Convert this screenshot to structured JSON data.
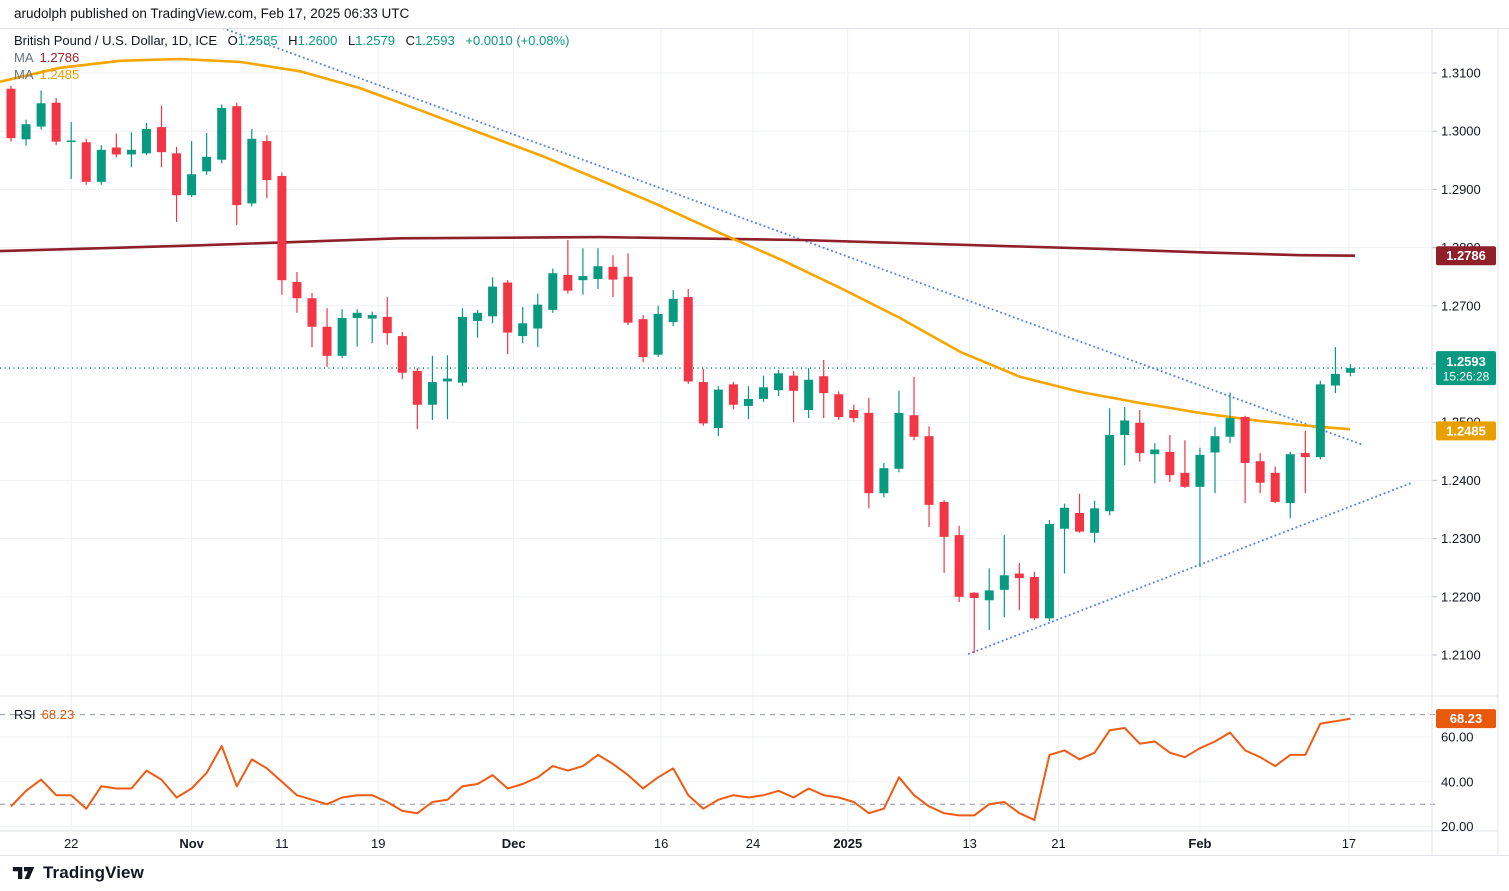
{
  "header": {
    "published_line": "arudolph published on TradingView.com, Feb 17, 2025 06:33 UTC"
  },
  "legend": {
    "symbol_line": "British Pound / U.S. Dollar, 1D, ICE",
    "ohlc": {
      "o_label": "O",
      "o": "1.2585",
      "h_label": "H",
      "h": "1.2600",
      "l_label": "L",
      "l": "1.2579",
      "c_label": "C",
      "c": "1.2593",
      "change": "+0.0010 (+0.08%)"
    },
    "ma1": {
      "label": "MA",
      "value": "1.2786"
    },
    "ma2": {
      "label": "MA",
      "value": "1.2485"
    }
  },
  "rsi_legend": {
    "label": "RSI",
    "value": "68.23"
  },
  "footer": {
    "brand": "TradingView"
  },
  "colors": {
    "up": "#089981",
    "down": "#f23645",
    "ma_fast": "#f7a600",
    "ma_fast_badge": "#e8a000",
    "ma_slow": "#8f1f29",
    "rsi_line": "#ef5b13",
    "rsi_badge": "#e8590c",
    "trendline": "#5e81f2",
    "price_line": "#089981",
    "grid": "#eef1f6",
    "guide_dash": "#8e94a3",
    "axis_text": "#131722",
    "border": "#e0e3eb",
    "badge_text": "#ffffff",
    "tick": "#b9bec9"
  },
  "chart_data": {
    "type": "candlestick",
    "title": "British Pound / U.S. Dollar",
    "interval": "1D",
    "exchange": "ICE",
    "current": {
      "o": 1.2585,
      "h": 1.26,
      "l": 1.2579,
      "c": 1.2593,
      "change": "+0.0010",
      "change_pct": "+0.08%"
    },
    "price_line": 1.2593,
    "countdown": "15:26:28",
    "ma_slow_value": 1.2786,
    "ma_fast_value": 1.2485,
    "rsi_value": 68.23,
    "price_axis_range": [
      1.2029,
      1.3148
    ],
    "rsi_axis_range": [
      18,
      78
    ],
    "price_ticks": [
      {
        "label": "1.3100",
        "value": 1.31
      },
      {
        "label": "1.3000",
        "value": 1.3
      },
      {
        "label": "1.2900",
        "value": 1.29
      },
      {
        "label": "1.2800",
        "value": 1.28
      },
      {
        "label": "1.2700",
        "value": 1.27
      },
      {
        "label": "1.2600",
        "value": 1.26
      },
      {
        "label": "1.2500",
        "value": 1.25
      },
      {
        "label": "1.2400",
        "value": 1.24
      },
      {
        "label": "1.2300",
        "value": 1.23
      },
      {
        "label": "1.2200",
        "value": 1.22
      },
      {
        "label": "1.2100",
        "value": 1.21
      }
    ],
    "rsi_ticks": [
      {
        "label": "60.00",
        "value": 60
      },
      {
        "label": "40.00",
        "value": 40
      },
      {
        "label": "20.00",
        "value": 20
      }
    ],
    "rsi_guides": [
      70,
      30
    ],
    "time_ticks": [
      {
        "label": "22",
        "index": 4,
        "bold": false
      },
      {
        "label": "Nov",
        "index": 12,
        "bold": true
      },
      {
        "label": "11",
        "index": 18,
        "bold": false
      },
      {
        "label": "19",
        "index": 24.4,
        "bold": false
      },
      {
        "label": "Dec",
        "index": 33.4,
        "bold": true
      },
      {
        "label": "16",
        "index": 43.2,
        "bold": false
      },
      {
        "label": "24",
        "index": 49.3,
        "bold": false
      },
      {
        "label": "2025",
        "index": 55.6,
        "bold": true
      },
      {
        "label": "13",
        "index": 63.7,
        "bold": false
      },
      {
        "label": "21",
        "index": 69.6,
        "bold": false
      },
      {
        "label": "Feb",
        "index": 79,
        "bold": true
      },
      {
        "label": "17",
        "index": 88.9,
        "bold": false
      }
    ],
    "candles": [
      [
        1.3073,
        1.3078,
        1.2982,
        1.2988
      ],
      [
        1.2986,
        1.302,
        1.2975,
        1.3012
      ],
      [
        1.3008,
        1.307,
        1.3003,
        1.3048
      ],
      [
        1.3049,
        1.3057,
        1.2976,
        1.2982
      ],
      [
        1.2982,
        1.3016,
        1.2918,
        1.2984
      ],
      [
        1.2981,
        1.2987,
        1.2908,
        1.2913
      ],
      [
        1.2913,
        1.2976,
        1.2908,
        1.2968
      ],
      [
        1.2972,
        1.2996,
        1.2955,
        1.296
      ],
      [
        1.296,
        1.2998,
        1.2938,
        1.2968
      ],
      [
        1.2962,
        1.3014,
        1.2959,
        1.3004
      ],
      [
        1.3007,
        1.3044,
        1.2938,
        1.2964
      ],
      [
        1.2962,
        1.2973,
        1.2844,
        1.289
      ],
      [
        1.289,
        1.2983,
        1.2887,
        1.2926
      ],
      [
        1.2931,
        1.2997,
        1.2925,
        1.2956
      ],
      [
        1.2951,
        1.3046,
        1.2945,
        1.304
      ],
      [
        1.3043,
        1.3049,
        1.2839,
        1.2873
      ],
      [
        1.2876,
        1.3004,
        1.2871,
        1.2987
      ],
      [
        1.2983,
        1.2993,
        1.2885,
        1.2916
      ],
      [
        1.2923,
        1.2929,
        1.2719,
        1.2744
      ],
      [
        1.2741,
        1.2758,
        1.2688,
        1.2713
      ],
      [
        1.2713,
        1.2722,
        1.2629,
        1.2664
      ],
      [
        1.2664,
        1.2696,
        1.2595,
        1.2614
      ],
      [
        1.2614,
        1.2694,
        1.261,
        1.2679
      ],
      [
        1.2679,
        1.2694,
        1.263,
        1.2688
      ],
      [
        1.2678,
        1.269,
        1.2636,
        1.2684
      ],
      [
        1.2681,
        1.2715,
        1.2633,
        1.2653
      ],
      [
        1.2648,
        1.2655,
        1.2574,
        1.2585
      ],
      [
        1.2588,
        1.2593,
        1.2488,
        1.253
      ],
      [
        1.253,
        1.2614,
        1.2504,
        1.2569
      ],
      [
        1.257,
        1.2615,
        1.2505,
        1.2575
      ],
      [
        1.2568,
        1.2696,
        1.2562,
        1.2681
      ],
      [
        1.2674,
        1.2693,
        1.2645,
        1.2688
      ],
      [
        1.2682,
        1.2749,
        1.267,
        1.2733
      ],
      [
        1.274,
        1.2744,
        1.2617,
        1.2654
      ],
      [
        1.2648,
        1.2698,
        1.2636,
        1.267
      ],
      [
        1.2661,
        1.2721,
        1.2629,
        1.2702
      ],
      [
        1.2693,
        1.2764,
        1.2688,
        1.2756
      ],
      [
        1.2753,
        1.2813,
        1.2721,
        1.2726
      ],
      [
        1.2744,
        1.2799,
        1.2719,
        1.2751
      ],
      [
        1.2746,
        1.2799,
        1.2729,
        1.2768
      ],
      [
        1.2767,
        1.2787,
        1.2715,
        1.2745
      ],
      [
        1.275,
        1.279,
        1.2667,
        1.2671
      ],
      [
        1.2677,
        1.2684,
        1.2603,
        1.2612
      ],
      [
        1.2616,
        1.27,
        1.2612,
        1.2686
      ],
      [
        1.2672,
        1.2727,
        1.2665,
        1.2712
      ],
      [
        1.2715,
        1.2729,
        1.2566,
        1.257
      ],
      [
        1.2569,
        1.2592,
        1.2494,
        1.2498
      ],
      [
        1.249,
        1.2562,
        1.2476,
        1.2556
      ],
      [
        1.2565,
        1.2569,
        1.2522,
        1.253
      ],
      [
        1.2528,
        1.2562,
        1.2505,
        1.254
      ],
      [
        1.254,
        1.258,
        1.2535,
        1.256
      ],
      [
        1.2555,
        1.259,
        1.2545,
        1.2584
      ],
      [
        1.258,
        1.2588,
        1.25,
        1.2554
      ],
      [
        1.2521,
        1.2593,
        1.2507,
        1.2573
      ],
      [
        1.2579,
        1.2607,
        1.2507,
        1.255
      ],
      [
        1.2548,
        1.2553,
        1.2504,
        1.2509
      ],
      [
        1.2521,
        1.253,
        1.25,
        1.2507
      ],
      [
        1.2516,
        1.2542,
        1.2352,
        1.2378
      ],
      [
        1.2378,
        1.243,
        1.2371,
        1.2421
      ],
      [
        1.242,
        1.2554,
        1.2414,
        1.2516
      ],
      [
        1.2512,
        1.2578,
        1.2469,
        1.2475
      ],
      [
        1.2476,
        1.2493,
        1.232,
        1.2358
      ],
      [
        1.2363,
        1.2366,
        1.2241,
        1.2303
      ],
      [
        1.2306,
        1.2322,
        1.2191,
        1.22
      ],
      [
        1.2207,
        1.2208,
        1.2103,
        1.2198
      ],
      [
        1.2194,
        1.2249,
        1.2143,
        1.2211
      ],
      [
        1.2212,
        1.2306,
        1.2165,
        1.2237
      ],
      [
        1.224,
        1.2258,
        1.2177,
        1.2232
      ],
      [
        1.2234,
        1.2243,
        1.216,
        1.2163
      ],
      [
        1.2163,
        1.2332,
        1.2158,
        1.2325
      ],
      [
        1.2317,
        1.236,
        1.224,
        1.2353
      ],
      [
        1.2344,
        1.2377,
        1.231,
        1.2312
      ],
      [
        1.231,
        1.2365,
        1.2293,
        1.2352
      ],
      [
        1.2347,
        1.2524,
        1.234,
        1.2478
      ],
      [
        1.2478,
        1.2526,
        1.2426,
        1.2503
      ],
      [
        1.2499,
        1.2521,
        1.2432,
        1.2447
      ],
      [
        1.2445,
        1.2464,
        1.2395,
        1.2453
      ],
      [
        1.2449,
        1.2478,
        1.2397,
        1.2409
      ],
      [
        1.2413,
        1.2469,
        1.2387,
        1.2389
      ],
      [
        1.2389,
        1.2456,
        1.2251,
        1.2444
      ],
      [
        1.2448,
        1.2492,
        1.2378,
        1.2476
      ],
      [
        1.2475,
        1.2551,
        1.2464,
        1.2507
      ],
      [
        1.2509,
        1.2511,
        1.2361,
        1.243
      ],
      [
        1.2433,
        1.2447,
        1.2378,
        1.2396
      ],
      [
        1.2413,
        1.2424,
        1.2361,
        1.2363
      ],
      [
        1.2361,
        1.2449,
        1.2335,
        1.2445
      ],
      [
        1.2447,
        1.2485,
        1.2378,
        1.244
      ],
      [
        1.244,
        1.2571,
        1.2436,
        1.2565
      ],
      [
        1.2563,
        1.2629,
        1.255,
        1.2583
      ],
      [
        1.2585,
        1.26,
        1.2579,
        1.2593
      ]
    ],
    "rsi": [
      29,
      36,
      41,
      34,
      34,
      28,
      38,
      37,
      37,
      45,
      41,
      33,
      37,
      44,
      56,
      38,
      50,
      46,
      40,
      34,
      32,
      30,
      33,
      34,
      34,
      31,
      27,
      26,
      31,
      32,
      38,
      39,
      43,
      37,
      39,
      42,
      47,
      45,
      47,
      52,
      48,
      43,
      37,
      42,
      46,
      34,
      28,
      32,
      34,
      33,
      34,
      36,
      33,
      37,
      34,
      33,
      31,
      26,
      28,
      42,
      34,
      29,
      26,
      25,
      25,
      30,
      31,
      26,
      23,
      52,
      54,
      50,
      53,
      63,
      64,
      57,
      58,
      53,
      51,
      55,
      58,
      62,
      54,
      51,
      47,
      52,
      52,
      66,
      67,
      68.23
    ],
    "ma_fast_points": [
      [
        -0.73,
        1.3085
      ],
      [
        3.26,
        1.3109
      ],
      [
        7.24,
        1.3121
      ],
      [
        11.23,
        1.3124
      ],
      [
        15.22,
        1.3119
      ],
      [
        19.2,
        1.3103
      ],
      [
        23.19,
        1.3074
      ],
      [
        27.18,
        1.3036
      ],
      [
        31.16,
        1.2997
      ],
      [
        35.15,
        1.2959
      ],
      [
        39.14,
        1.2916
      ],
      [
        43.12,
        1.2872
      ],
      [
        47.11,
        1.2825
      ],
      [
        51.1,
        1.278
      ],
      [
        55.08,
        1.2731
      ],
      [
        59.07,
        1.2679
      ],
      [
        63.06,
        1.2621
      ],
      [
        67.04,
        1.2578
      ],
      [
        71.03,
        1.2552
      ],
      [
        75.02,
        1.2533
      ],
      [
        79.0,
        1.2516
      ],
      [
        82.99,
        1.2502
      ],
      [
        86.98,
        1.2492
      ],
      [
        88.97,
        1.2488
      ]
    ],
    "ma_slow_points": [
      [
        -0.73,
        1.2794
      ],
      [
        12.56,
        1.2804
      ],
      [
        25.85,
        1.2816
      ],
      [
        39.14,
        1.2818
      ],
      [
        52.43,
        1.2813
      ],
      [
        65.71,
        1.2803
      ],
      [
        72.36,
        1.2798
      ],
      [
        79.0,
        1.2792
      ],
      [
        85.65,
        1.2787
      ],
      [
        89.3,
        1.2786
      ]
    ],
    "trendlines": [
      {
        "name": "descending-resistance",
        "x1_index": 13.55,
        "price1": 1.3182,
        "x2_index": 89.83,
        "price2": 1.2461
      },
      {
        "name": "ascending-support",
        "x1_index": 63.65,
        "price1": 1.2102,
        "x2_index": 93.09,
        "price2": 1.2396
      }
    ]
  }
}
